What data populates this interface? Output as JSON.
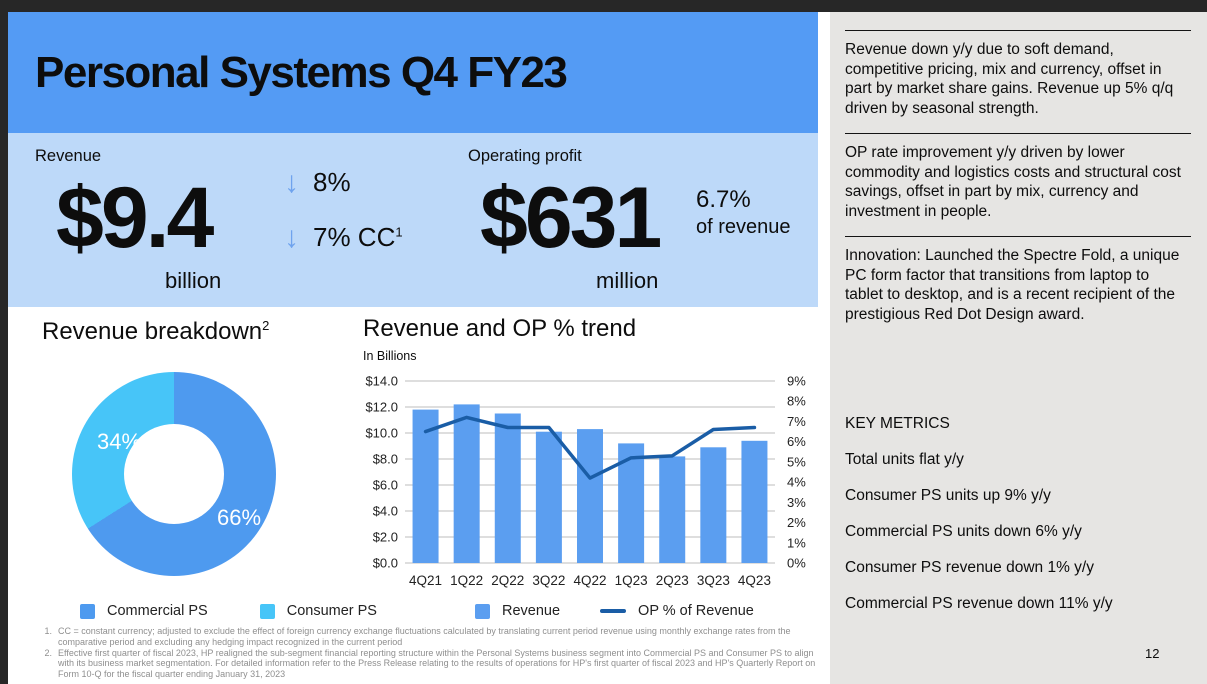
{
  "slide": {
    "title": "Personal Systems Q4 FY23",
    "page_number": "12"
  },
  "kpis": {
    "revenue": {
      "label": "Revenue",
      "value": "$9.4",
      "unit": "billion",
      "changes": [
        {
          "icon": "↓",
          "text": "8%",
          "sup": ""
        },
        {
          "icon": "↓",
          "text": "7% CC",
          "sup": "1"
        }
      ]
    },
    "operating_profit": {
      "label": "Operating profit",
      "value": "$631",
      "unit": "million",
      "pct": "6.7%",
      "pct_label": "of revenue"
    }
  },
  "sidebar": {
    "paragraphs": [
      "Revenue down y/y due to soft demand, competitive pricing, mix and currency, offset in part by market share gains.  Revenue up 5% q/q driven by seasonal strength.",
      "OP rate improvement y/y driven by lower commodity and logistics costs and structural cost savings, offset in part by mix, currency and investment in people.",
      "Innovation:  Launched the Spectre Fold, a unique PC form factor that transitions from laptop to tablet to desktop, and is a recent recipient of the prestigious Red Dot Design award."
    ],
    "key_metrics_title": "KEY METRICS",
    "key_metrics": [
      "Total units  flat y/y",
      "Consumer PS units up 9% y/y",
      "Commercial PS units down 6% y/y",
      "Consumer PS revenue down 1% y/y",
      "Commercial PS revenue down 11% y/y"
    ]
  },
  "footnotes": [
    {
      "num": "1.",
      "text": "CC = constant currency; adjusted to exclude the effect of foreign currency exchange fluctuations calculated by translating current period revenue using monthly exchange rates from the comparative period and excluding any hedging impact recognized in the current period"
    },
    {
      "num": "2.",
      "text": "Effective first quarter of fiscal 2023, HP realigned the sub-segment financial reporting structure within the Personal Systems business segment into Commercial PS and Consumer PS to align with its business market segmentation. For detailed information refer to the Press Release relating to the results of operations for HP's first quarter of fiscal 2023 and HP's Quarterly Report on Form 10-Q for the fiscal quarter ending January 31, 2023"
    }
  ],
  "chart_data": [
    {
      "type": "pie",
      "donut": true,
      "title": "Revenue breakdown",
      "title_superscript": "2",
      "slices": [
        {
          "label": "Commercial PS",
          "value": 66,
          "label_text": "66%",
          "color": "#4E9AEF"
        },
        {
          "label": "Consumer PS",
          "value": 34,
          "label_text": "34%",
          "color": "#47C5F8"
        }
      ],
      "legend_position": "bottom"
    },
    {
      "type": "bar+line",
      "title": "Revenue and OP % trend",
      "subtitle": "In Billions",
      "categories": [
        "4Q21",
        "1Q22",
        "2Q22",
        "3Q22",
        "4Q22",
        "1Q23",
        "2Q23",
        "3Q23",
        "4Q23"
      ],
      "series": [
        {
          "name": "Revenue",
          "type": "bar",
          "axis": "left",
          "color": "#5B9EF0",
          "values": [
            11.8,
            12.2,
            11.5,
            10.1,
            10.3,
            9.2,
            8.2,
            8.9,
            9.4
          ]
        },
        {
          "name": "OP % of Revenue",
          "type": "line",
          "axis": "right",
          "color": "#1A5DA6",
          "values": [
            6.5,
            7.2,
            6.7,
            6.7,
            4.2,
            5.2,
            5.3,
            6.6,
            6.7
          ]
        }
      ],
      "left_axis": {
        "min": 0,
        "max": 14,
        "step": 2,
        "prefix": "$",
        "decimals": 1
      },
      "right_axis": {
        "min": 0,
        "max": 9,
        "step": 1,
        "suffix": "%"
      },
      "grid": true,
      "legend_position": "bottom"
    }
  ],
  "colors": {
    "title_band": "#549BF4",
    "kpi_band": "#BDD9F9",
    "sidebar_bg": "#E6E5E3",
    "frame": "#272727",
    "arrow_blue": "#6FA3EE",
    "gridline": "#C9C9C9"
  }
}
